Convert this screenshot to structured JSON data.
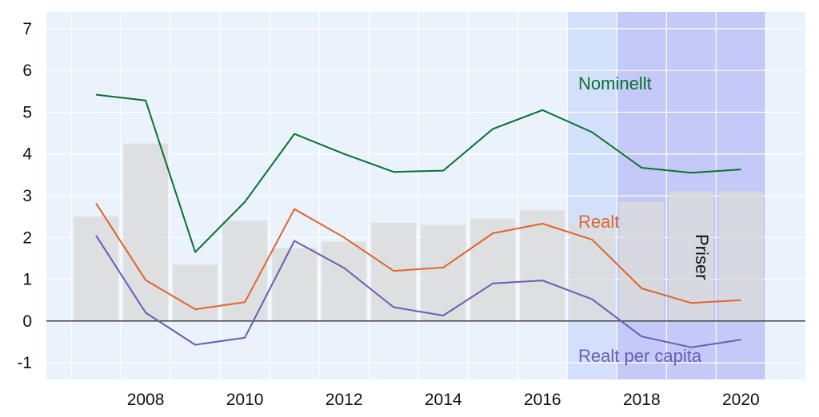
{
  "chart_data": {
    "type": "bar+line",
    "x": [
      2007,
      2008,
      2009,
      2010,
      2011,
      2012,
      2013,
      2014,
      2015,
      2016,
      2017,
      2018,
      2019,
      2020
    ],
    "x_tick_labels": [
      "2008",
      "2010",
      "2012",
      "2014",
      "2016",
      "2018",
      "2020"
    ],
    "y_tick_labels": [
      "-1",
      "0",
      "1",
      "2",
      "3",
      "4",
      "5",
      "6",
      "7"
    ],
    "ylim": [
      -1.4,
      7.4
    ],
    "xlim": [
      2006.0,
      2021.3
    ],
    "grid": true,
    "bars": {
      "name": "Priser",
      "values": [
        2.5,
        4.25,
        1.35,
        2.4,
        1.75,
        1.9,
        2.35,
        2.3,
        2.45,
        2.65,
        2.35,
        2.85,
        3.1,
        3.1
      ]
    },
    "series": [
      {
        "name": "Nominellt",
        "color": "#0a7030",
        "values": [
          5.42,
          5.28,
          1.65,
          2.85,
          4.48,
          4.0,
          3.57,
          3.6,
          4.6,
          5.05,
          4.52,
          3.67,
          3.55,
          3.63
        ]
      },
      {
        "name": "Realt",
        "color": "#e0642a",
        "values": [
          2.82,
          0.98,
          0.28,
          0.45,
          2.68,
          2.0,
          1.2,
          1.28,
          2.1,
          2.33,
          1.95,
          0.78,
          0.43,
          0.5
        ]
      },
      {
        "name": "Realt per capita",
        "color": "#6a5db0",
        "values": [
          2.05,
          0.2,
          -0.57,
          -0.4,
          1.92,
          1.27,
          0.33,
          0.13,
          0.9,
          0.97,
          0.52,
          -0.37,
          -0.63,
          -0.45
        ]
      }
    ],
    "forecast_shading": [
      {
        "from": 2016.5,
        "to": 2017.5,
        "color": "#d2e0fb"
      },
      {
        "from": 2017.5,
        "to": 2020.5,
        "color": "#c4c9f8"
      }
    ],
    "colors": {
      "background": "#eaf2fc",
      "bar": "#dcdcdc",
      "grid": "#ffffff",
      "zero_line": "#333333"
    }
  }
}
